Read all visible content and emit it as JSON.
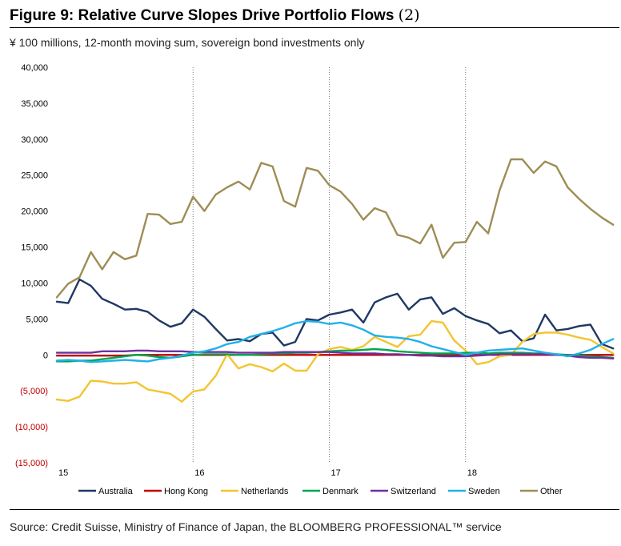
{
  "title": {
    "main": "Figure 9:  Relative Curve Slopes Drive Portfolio Flows",
    "suffix": "(2)"
  },
  "subtitle": "¥ 100 millions, 12-month moving sum, sovereign bond investments only",
  "source": "Source: Credit Suisse, Ministry of Finance of Japan, the BLOOMBERG PROFESSIONAL™ service",
  "chart_data": {
    "type": "line",
    "title": "Relative Curve Slopes Drive Portfolio Flows",
    "xlabel": "",
    "ylabel": "¥ 100 millions",
    "ylim": [
      -15000,
      40000
    ],
    "xlim": [
      2015.0,
      2019.0
    ],
    "yticks": [
      40000,
      35000,
      30000,
      25000,
      20000,
      15000,
      10000,
      5000,
      0,
      -5000,
      -10000,
      -15000
    ],
    "ytick_labels": [
      "40,000",
      "35,000",
      "30,000",
      "25,000",
      "20,000",
      "15,000",
      "10,000",
      "5,000",
      "0",
      "(5,000)",
      "(10,000)",
      "(15,000)"
    ],
    "xticks": [
      2015,
      2016,
      2017,
      2018
    ],
    "xtick_labels": [
      "15",
      "16",
      "17",
      "18"
    ],
    "vlines": [
      2016,
      2017,
      2018
    ],
    "legend_position": "bottom",
    "x_start": 2015.0,
    "x_step_months": 1,
    "series": [
      {
        "name": "Australia",
        "color": "#1f3864",
        "values": [
          7400,
          7200,
          10500,
          9600,
          7800,
          7100,
          6300,
          6400,
          6000,
          4800,
          3900,
          4400,
          6300,
          5300,
          3600,
          2000,
          2200,
          1900,
          2900,
          3100,
          1300,
          1800,
          5000,
          4800,
          5600,
          5900,
          6300,
          4500,
          7300,
          8000,
          8500,
          6300,
          7700,
          8000,
          5700,
          6500,
          5400,
          4800,
          4300,
          3000,
          3400,
          1900,
          2300,
          5600,
          3400,
          3600,
          4000,
          4200,
          1500,
          900
        ]
      },
      {
        "name": "Hong Kong",
        "color": "#c00000",
        "values": [
          -100,
          -100,
          -100,
          -100,
          -100,
          -100,
          -100,
          0,
          0,
          0,
          0,
          0,
          0,
          0,
          0,
          0,
          0,
          0,
          0,
          0,
          0,
          0,
          0,
          0,
          0,
          0,
          0,
          0,
          0,
          0,
          0,
          0,
          0,
          0,
          0,
          0,
          0,
          0,
          0,
          0,
          0,
          0,
          0,
          0,
          0,
          0,
          0,
          0,
          0,
          0
        ]
      },
      {
        "name": "Netherlands",
        "color": "#f4c430",
        "values": [
          -6200,
          -6400,
          -5800,
          -3600,
          -3700,
          -4000,
          -4000,
          -3800,
          -4800,
          -5100,
          -5400,
          -6500,
          -5100,
          -4800,
          -2900,
          100,
          -1900,
          -1300,
          -1700,
          -2300,
          -1200,
          -2200,
          -2200,
          100,
          800,
          1100,
          700,
          1200,
          2500,
          1800,
          1100,
          2600,
          2800,
          4700,
          4500,
          2000,
          600,
          -1300,
          -1000,
          -200,
          0,
          1800,
          2900,
          3100,
          3100,
          2800,
          2400,
          2100,
          1100,
          200
        ]
      },
      {
        "name": "Denmark",
        "color": "#00a651",
        "values": [
          -900,
          -900,
          -800,
          -800,
          -600,
          -400,
          -200,
          0,
          -100,
          -300,
          -400,
          -200,
          0,
          100,
          100,
          100,
          0,
          0,
          100,
          200,
          200,
          300,
          300,
          400,
          500,
          600,
          600,
          700,
          800,
          700,
          500,
          400,
          300,
          200,
          200,
          200,
          300,
          300,
          200,
          300,
          300,
          300,
          200,
          200,
          100,
          0,
          -100,
          -200,
          -300,
          -400
        ]
      },
      {
        "name": "Switzerland",
        "color": "#7030a0",
        "values": [
          300,
          300,
          300,
          300,
          500,
          500,
          500,
          600,
          600,
          500,
          500,
          500,
          400,
          400,
          400,
          400,
          300,
          300,
          300,
          300,
          400,
          400,
          400,
          400,
          400,
          300,
          200,
          200,
          200,
          100,
          100,
          0,
          -100,
          -100,
          -200,
          -200,
          -200,
          -100,
          0,
          100,
          100,
          100,
          100,
          100,
          0,
          -100,
          -300,
          -400,
          -400,
          -500
        ]
      },
      {
        "name": "Sweden",
        "color": "#22b0e8",
        "values": [
          -800,
          -700,
          -800,
          -1000,
          -900,
          -800,
          -700,
          -800,
          -900,
          -600,
          -400,
          -100,
          300,
          500,
          900,
          1500,
          1800,
          2500,
          2900,
          3300,
          3800,
          4400,
          4700,
          4600,
          4300,
          4500,
          4100,
          3500,
          2700,
          2500,
          2400,
          2200,
          1800,
          1200,
          800,
          400,
          0,
          300,
          600,
          700,
          800,
          900,
          600,
          300,
          100,
          -200,
          200,
          700,
          1500,
          2200
        ]
      },
      {
        "name": "Other",
        "color": "#9e8d55",
        "values": [
          8000,
          9900,
          10800,
          14300,
          11900,
          14300,
          13300,
          13800,
          19600,
          19500,
          18200,
          18500,
          22000,
          20000,
          22300,
          23300,
          24100,
          23000,
          26700,
          26200,
          21400,
          20600,
          26000,
          25600,
          23600,
          22700,
          21000,
          18800,
          20400,
          19800,
          16700,
          16300,
          15500,
          18100,
          13500,
          15600,
          15700,
          18500,
          16900,
          22900,
          27200,
          27200,
          25300,
          26900,
          26200,
          23300,
          21700,
          20300,
          19100,
          18100
        ]
      }
    ]
  }
}
